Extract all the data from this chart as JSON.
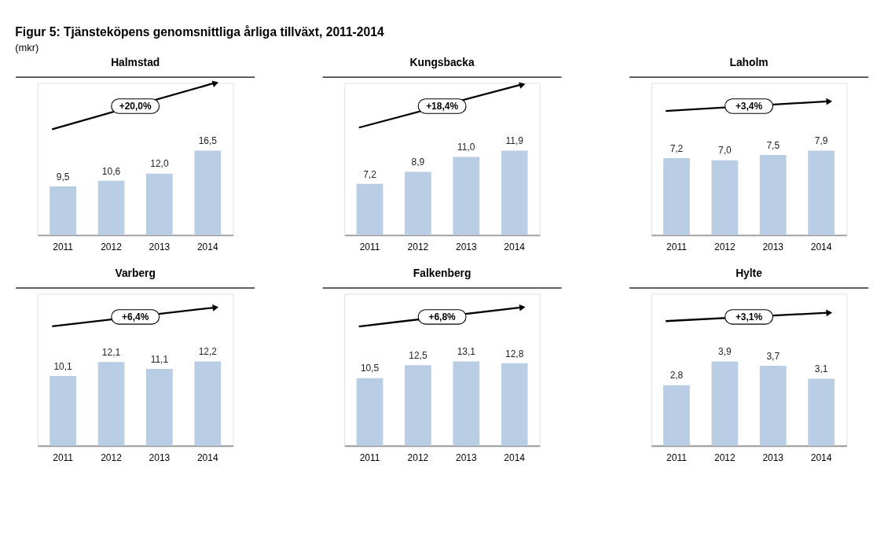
{
  "chart_data": [
    {
      "type": "bar",
      "title": "Halmstad",
      "categories": [
        "2011",
        "2012",
        "2013",
        "2014"
      ],
      "values": [
        9.5,
        10.6,
        12.0,
        16.5
      ],
      "value_labels": [
        "9,5",
        "10,6",
        "12,0",
        "16,5"
      ],
      "color": "#b9cde5",
      "annotations": [
        "Figur 5: Tjänsteköpens genomsnittliga årliga tillväxt, 2011-2014",
        "(mkr)",
        "+20,0%"
      ]
    },
    {
      "type": "bar",
      "title": "Kungsbacka",
      "categories": [
        "2011",
        "2012",
        "2013",
        "2014"
      ],
      "values": [
        7.2,
        8.9,
        11.0,
        11.9
      ],
      "value_labels": [
        "7,2",
        "8,9",
        "11,0",
        "11,9"
      ],
      "color": "#b9cde5",
      "annotations": [
        "+18,4%"
      ]
    },
    {
      "type": "bar",
      "title": "Laholm",
      "categories": [
        "2011",
        "2012",
        "2013",
        "2014"
      ],
      "values": [
        7.2,
        7.0,
        7.5,
        7.9
      ],
      "value_labels": [
        "7,2",
        "7,0",
        "7,5",
        "7,9"
      ],
      "color": "#b9cde5",
      "annotations": [
        "+3,4%"
      ]
    },
    {
      "type": "bar",
      "title": "Varberg",
      "categories": [
        "2011",
        "2012",
        "2013",
        "2014"
      ],
      "values": [
        10.1,
        12.1,
        11.1,
        12.2
      ],
      "value_labels": [
        "10,1",
        "12,1",
        "11,1",
        "12,2"
      ],
      "color": "#b9cde5",
      "annotations": [
        "+6,4%"
      ]
    },
    {
      "type": "bar",
      "title": "Falkenberg",
      "categories": [
        "2011",
        "2012",
        "2013",
        "2014"
      ],
      "values": [
        10.5,
        12.5,
        13.1,
        12.8
      ],
      "value_labels": [
        "10,5",
        "12,5",
        "13,1",
        "12,8"
      ],
      "color": "#b9cde5",
      "annotations": [
        "+6,8%"
      ]
    },
    {
      "type": "bar",
      "title": "Hylte",
      "categories": [
        "2011",
        "2012",
        "2013",
        "2014"
      ],
      "values": [
        2.8,
        3.9,
        3.7,
        3.1
      ],
      "value_labels": [
        "2,8",
        "3,9",
        "3,7",
        "3,1"
      ],
      "color": "#b9cde5",
      "annotations": [
        "+3,1%"
      ]
    }
  ]
}
